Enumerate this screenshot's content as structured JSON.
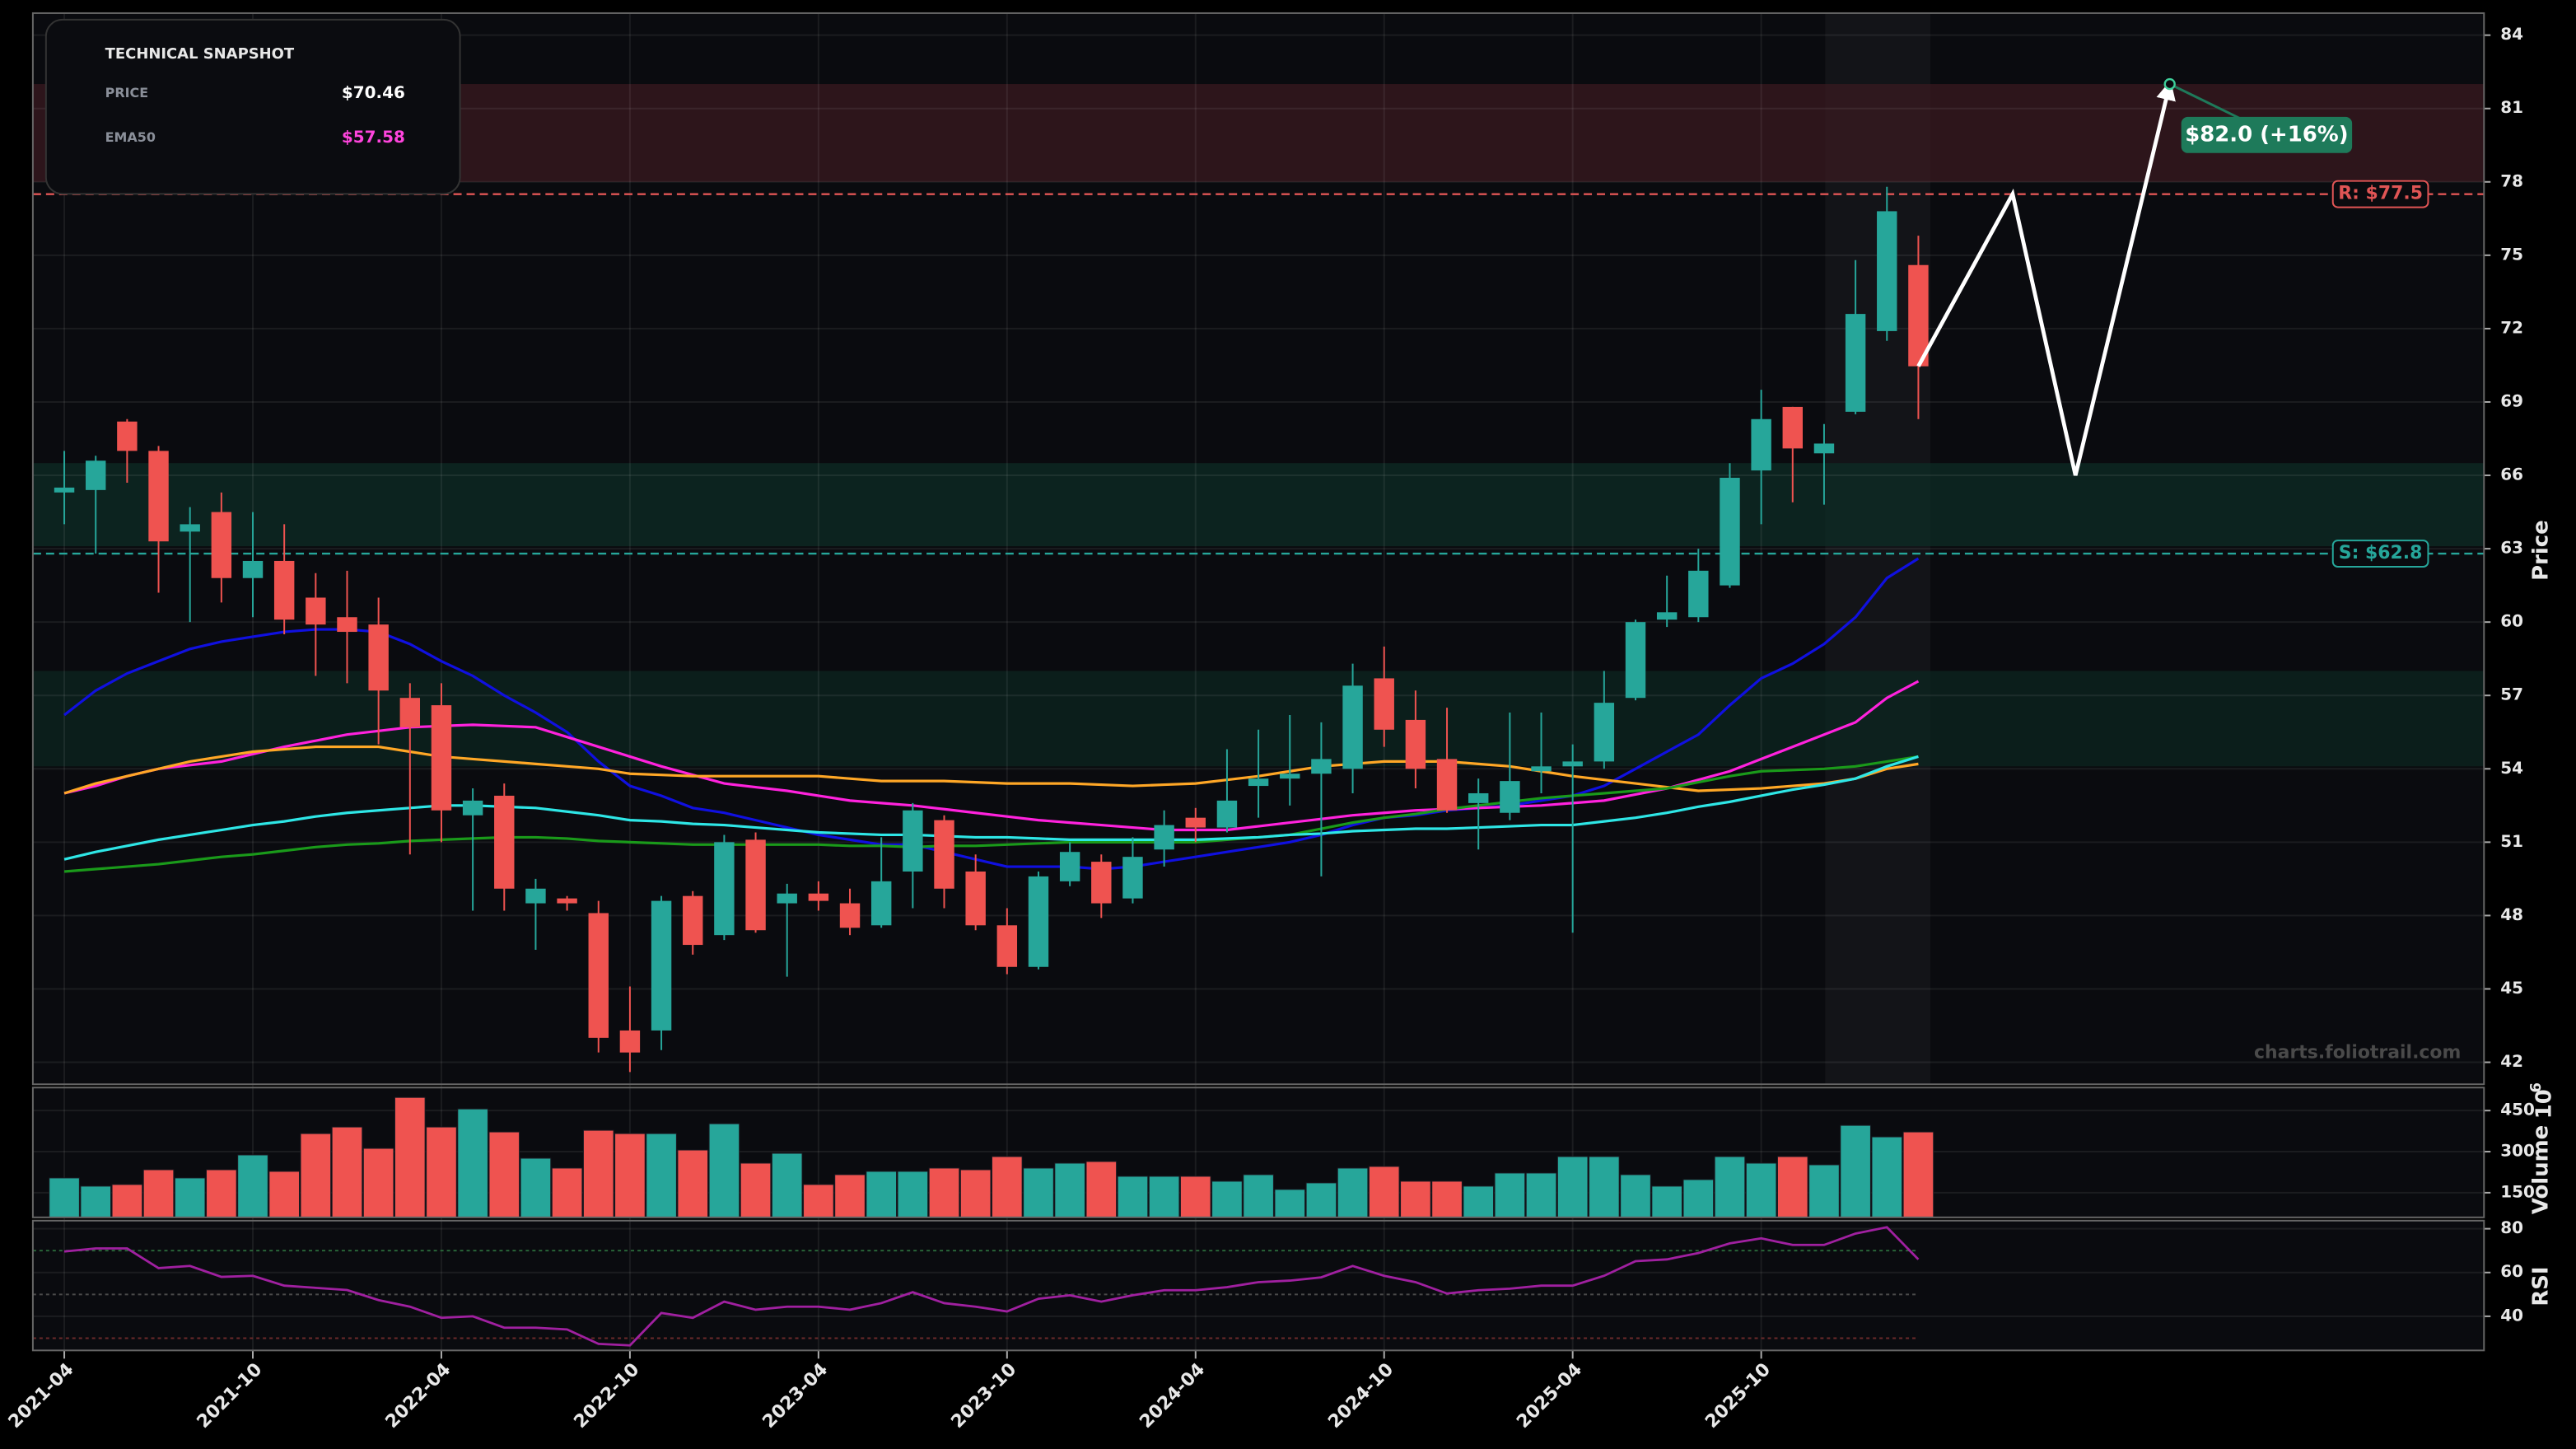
{
  "snapshot": {
    "title": "TECHNICAL SNAPSHOT",
    "rows": [
      {
        "label": "PRICE",
        "value": "$70.46",
        "color": "#ffffff"
      },
      {
        "label": "EMA50",
        "value": "$57.58",
        "color": "#ff44dd"
      }
    ]
  },
  "chart_data": {
    "type": "candlestick",
    "x": [
      "2021-04",
      "2021-05",
      "2021-06",
      "2021-07",
      "2021-08",
      "2021-09",
      "2021-10",
      "2021-11",
      "2021-12",
      "2022-01",
      "2022-02",
      "2022-03",
      "2022-04",
      "2022-05",
      "2022-06",
      "2022-07",
      "2022-08",
      "2022-09",
      "2022-10",
      "2022-11",
      "2022-12",
      "2023-01",
      "2023-02",
      "2023-03",
      "2023-04",
      "2023-05",
      "2023-06",
      "2023-07",
      "2023-08",
      "2023-09",
      "2023-10",
      "2023-11",
      "2023-12",
      "2024-01",
      "2024-02",
      "2024-03",
      "2024-04",
      "2024-05",
      "2024-06",
      "2024-07",
      "2024-08",
      "2024-09",
      "2024-10",
      "2024-11",
      "2024-12",
      "2025-01",
      "2025-02",
      "2025-03",
      "2025-04",
      "2025-05",
      "2025-06",
      "2025-07",
      "2025-08",
      "2025-09",
      "2025-10",
      "2025-11",
      "2025-12",
      "2026-01",
      "2026-02",
      "2026-03"
    ],
    "open": [
      65.3,
      65.4,
      68.2,
      67.0,
      63.7,
      64.5,
      61.8,
      62.5,
      61.0,
      60.2,
      59.9,
      56.9,
      56.6,
      52.1,
      52.9,
      48.5,
      48.7,
      48.1,
      43.3,
      43.3,
      48.8,
      47.2,
      51.1,
      48.5,
      48.9,
      48.5,
      47.6,
      49.8,
      51.9,
      49.8,
      47.6,
      45.9,
      49.4,
      50.2,
      48.7,
      50.7,
      52.0,
      51.6,
      53.3,
      53.6,
      53.8,
      54.0,
      57.7,
      56.0,
      54.4,
      52.6,
      52.2,
      53.9,
      54.1,
      54.3,
      56.9,
      60.1,
      60.2,
      61.5,
      66.2,
      68.8,
      66.9,
      68.6,
      71.9,
      74.6
    ],
    "high": [
      67.0,
      66.8,
      68.3,
      67.2,
      64.7,
      65.3,
      64.5,
      64.0,
      62.0,
      62.1,
      61.0,
      57.5,
      57.5,
      53.2,
      53.4,
      49.5,
      48.8,
      48.6,
      45.1,
      48.8,
      49.0,
      51.3,
      51.4,
      49.3,
      49.4,
      49.1,
      51.2,
      52.6,
      52.1,
      50.5,
      48.3,
      49.8,
      51.0,
      50.5,
      51.2,
      52.3,
      52.4,
      54.8,
      55.6,
      56.2,
      55.9,
      58.3,
      59.0,
      57.2,
      56.5,
      53.6,
      56.3,
      56.3,
      55.0,
      58.0,
      60.1,
      61.9,
      63.0,
      66.5,
      69.5,
      68.8,
      68.1,
      74.8,
      77.8,
      75.8
    ],
    "low": [
      64.0,
      62.8,
      65.7,
      61.2,
      60.0,
      60.8,
      60.2,
      59.5,
      57.8,
      57.5,
      55.0,
      50.5,
      51.0,
      48.2,
      48.2,
      46.6,
      48.2,
      42.4,
      41.6,
      42.5,
      46.4,
      47.0,
      47.3,
      45.5,
      48.2,
      47.2,
      47.5,
      48.3,
      48.3,
      47.4,
      45.6,
      45.8,
      49.2,
      47.9,
      48.5,
      50.0,
      51.0,
      51.4,
      52.0,
      52.5,
      49.6,
      53.0,
      54.9,
      53.2,
      52.2,
      50.7,
      51.9,
      53.0,
      47.3,
      54.0,
      56.8,
      59.8,
      60.0,
      61.4,
      64.0,
      64.9,
      64.8,
      68.5,
      71.5,
      68.3
    ],
    "close": [
      65.5,
      66.6,
      67.0,
      63.3,
      64.0,
      61.8,
      62.5,
      60.1,
      59.9,
      59.6,
      57.2,
      55.7,
      52.3,
      52.7,
      49.1,
      49.1,
      48.5,
      43.0,
      42.4,
      48.6,
      46.8,
      51.0,
      47.4,
      48.9,
      48.6,
      47.5,
      49.4,
      52.3,
      49.1,
      47.6,
      45.9,
      49.6,
      50.6,
      48.5,
      50.4,
      51.7,
      51.6,
      52.7,
      53.6,
      53.8,
      54.4,
      57.4,
      55.6,
      54.0,
      52.3,
      53.0,
      53.5,
      54.1,
      54.3,
      56.7,
      60.0,
      60.4,
      62.1,
      65.9,
      68.3,
      67.1,
      67.3,
      72.6,
      76.8,
      70.46
    ],
    "up_color": "#26a69a",
    "down_color": "#ef5350",
    "xlim": [
      "2021-03",
      "2027-09"
    ],
    "xticks": [
      "2021-04",
      "2021-10",
      "2022-04",
      "2022-10",
      "2023-04",
      "2023-10",
      "2024-04",
      "2024-10",
      "2025-04",
      "2025-10"
    ],
    "ylim": [
      41.1,
      84.9
    ],
    "yticks": [
      42,
      45,
      48,
      51,
      54,
      57,
      60,
      63,
      66,
      69,
      72,
      75,
      78,
      81,
      84
    ],
    "ylabel": "Price",
    "grid": true,
    "lines": [
      {
        "color": "#1010e0",
        "values": [
          56.2,
          57.2,
          57.9,
          58.4,
          58.9,
          59.2,
          59.4,
          59.6,
          59.7,
          59.7,
          59.6,
          59.1,
          58.4,
          57.8,
          57.0,
          56.3,
          55.5,
          54.3,
          53.3,
          52.9,
          52.4,
          52.2,
          51.9,
          51.6,
          51.3,
          51.1,
          50.9,
          50.9,
          50.6,
          50.3,
          50.0,
          50.0,
          50.0,
          49.9,
          50.0,
          50.2,
          50.4,
          50.6,
          50.8,
          51.0,
          51.3,
          51.7,
          52.0,
          52.1,
          52.3,
          52.4,
          52.5,
          52.7,
          52.9,
          53.3,
          54.0,
          54.7,
          55.4,
          56.6,
          57.7,
          58.3,
          59.1,
          60.2,
          61.8,
          62.6
        ]
      },
      {
        "color": "#ff22dd",
        "values": [
          53.0,
          53.3,
          53.7,
          54.0,
          54.15,
          54.3,
          54.6,
          54.9,
          55.15,
          55.4,
          55.55,
          55.7,
          55.75,
          55.8,
          55.75,
          55.7,
          55.3,
          54.9,
          54.5,
          54.1,
          53.75,
          53.4,
          53.25,
          53.1,
          52.9,
          52.7,
          52.6,
          52.5,
          52.35,
          52.2,
          52.05,
          51.9,
          51.8,
          51.7,
          51.6,
          51.5,
          51.5,
          51.5,
          51.65,
          51.8,
          51.95,
          52.1,
          52.2,
          52.3,
          52.35,
          52.4,
          52.45,
          52.5,
          52.6,
          52.7,
          52.95,
          53.2,
          53.55,
          53.9,
          54.4,
          54.9,
          55.4,
          55.9,
          56.9,
          57.58
        ]
      },
      {
        "color": "#ffa726",
        "values": [
          53.0,
          53.4,
          53.7,
          54.0,
          54.3,
          54.5,
          54.7,
          54.8,
          54.9,
          54.9,
          54.9,
          54.7,
          54.5,
          54.4,
          54.3,
          54.2,
          54.1,
          54.0,
          53.8,
          53.75,
          53.7,
          53.7,
          53.7,
          53.7,
          53.7,
          53.6,
          53.5,
          53.5,
          53.5,
          53.45,
          53.4,
          53.4,
          53.4,
          53.35,
          53.3,
          53.35,
          53.4,
          53.55,
          53.7,
          53.9,
          54.1,
          54.2,
          54.3,
          54.3,
          54.3,
          54.2,
          54.1,
          53.9,
          53.7,
          53.55,
          53.4,
          53.25,
          53.1,
          53.15,
          53.2,
          53.3,
          53.4,
          53.6,
          54.0,
          54.2
        ]
      },
      {
        "color": "#1a9a1a",
        "values": [
          49.8,
          49.9,
          50.0,
          50.1,
          50.25,
          50.4,
          50.5,
          50.65,
          50.8,
          50.9,
          50.95,
          51.05,
          51.1,
          51.15,
          51.2,
          51.2,
          51.15,
          51.05,
          51.0,
          50.95,
          50.9,
          50.9,
          50.9,
          50.9,
          50.9,
          50.85,
          50.85,
          50.8,
          50.85,
          50.85,
          50.9,
          50.95,
          51.0,
          51.0,
          51.0,
          51.0,
          51.0,
          51.1,
          51.2,
          51.3,
          51.55,
          51.8,
          52.0,
          52.15,
          52.35,
          52.5,
          52.65,
          52.8,
          52.9,
          53.0,
          53.1,
          53.2,
          53.45,
          53.7,
          53.9,
          53.95,
          54.0,
          54.1,
          54.3,
          54.5
        ]
      },
      {
        "color": "#2ee6e6",
        "values": [
          50.3,
          50.6,
          50.85,
          51.1,
          51.3,
          51.5,
          51.7,
          51.85,
          52.05,
          52.2,
          52.3,
          52.4,
          52.5,
          52.5,
          52.45,
          52.4,
          52.25,
          52.1,
          51.9,
          51.85,
          51.75,
          51.7,
          51.6,
          51.5,
          51.4,
          51.35,
          51.3,
          51.3,
          51.25,
          51.2,
          51.2,
          51.15,
          51.1,
          51.1,
          51.1,
          51.1,
          51.1,
          51.15,
          51.2,
          51.3,
          51.35,
          51.45,
          51.5,
          51.55,
          51.55,
          51.6,
          51.65,
          51.7,
          51.7,
          51.85,
          52.0,
          52.2,
          52.45,
          52.65,
          52.9,
          53.15,
          53.35,
          53.6,
          54.1,
          54.5
        ]
      }
    ],
    "zones": [
      {
        "range": [
          78.0,
          82.0
        ],
        "color": "#3a1a20"
      },
      {
        "range": [
          63.1,
          66.5
        ],
        "color": "#0e2c26"
      },
      {
        "range": [
          54.1,
          58.0
        ],
        "color": "#0c2620"
      }
    ],
    "resistance": {
      "value": 77.5,
      "label": "R: $77.5",
      "color": "#e05555"
    },
    "support": {
      "value": 62.8,
      "label": "S: $62.8",
      "color": "#26a69a"
    },
    "projection": {
      "x": [
        "2026-03",
        "2026-06",
        "2026-08",
        "2026-11"
      ],
      "values": [
        70.46,
        77.5,
        66.0,
        82.0
      ],
      "color": "#ffffff"
    },
    "target": {
      "x": "2026-11",
      "value": 82.0,
      "value_label": "$82.0 (+16%)",
      "color": "#1e7a5a"
    },
    "watermark": "charts.foliotrail.com",
    "volume": {
      "ylabel": "Volume",
      "scale_base": "10",
      "scale_exponent": "6",
      "ylim": [
        60,
        534
      ],
      "yticks": [
        150,
        300,
        450
      ],
      "values": [
        204,
        174,
        180,
        234,
        204,
        234,
        288,
        228,
        366,
        390,
        312,
        498,
        390,
        456,
        372,
        276,
        240,
        378,
        366,
        366,
        306,
        402,
        258,
        294,
        180,
        216,
        228,
        228,
        240,
        234,
        282,
        240,
        258,
        264,
        210,
        210,
        210,
        192,
        216,
        162,
        186,
        240,
        246,
        192,
        192,
        174,
        222,
        222,
        282,
        282,
        216,
        174,
        198,
        282,
        258,
        282,
        252,
        396,
        354,
        372
      ]
    },
    "rsi": {
      "ylabel": "RSI",
      "color": "#a020a0",
      "ylim": [
        24.4,
        83.7
      ],
      "yticks": [
        40,
        60,
        80
      ],
      "levels": [
        {
          "value": 70,
          "color": "#2a6a3a"
        },
        {
          "value": 50,
          "color": "#4a4a4a"
        },
        {
          "value": 30,
          "color": "#6a2a2a"
        }
      ],
      "values": [
        69.6,
        71,
        71,
        62,
        63,
        58,
        58.5,
        54,
        53,
        52,
        47.4,
        44.4,
        39.3,
        40,
        34.8,
        34.8,
        34,
        27.4,
        26.7,
        41.5,
        39.3,
        46.7,
        43,
        44.4,
        44.4,
        43,
        46,
        51,
        46,
        44.4,
        42.2,
        48,
        49.6,
        46.7,
        49.6,
        51.9,
        51.9,
        53.3,
        55.6,
        56.3,
        57.8,
        63,
        58.5,
        55.6,
        50.4,
        51.9,
        52.6,
        54,
        54,
        58.5,
        65.2,
        66,
        68.9,
        73.3,
        75.6,
        72.6,
        72.6,
        77.8,
        80.7,
        66
      ]
    }
  }
}
